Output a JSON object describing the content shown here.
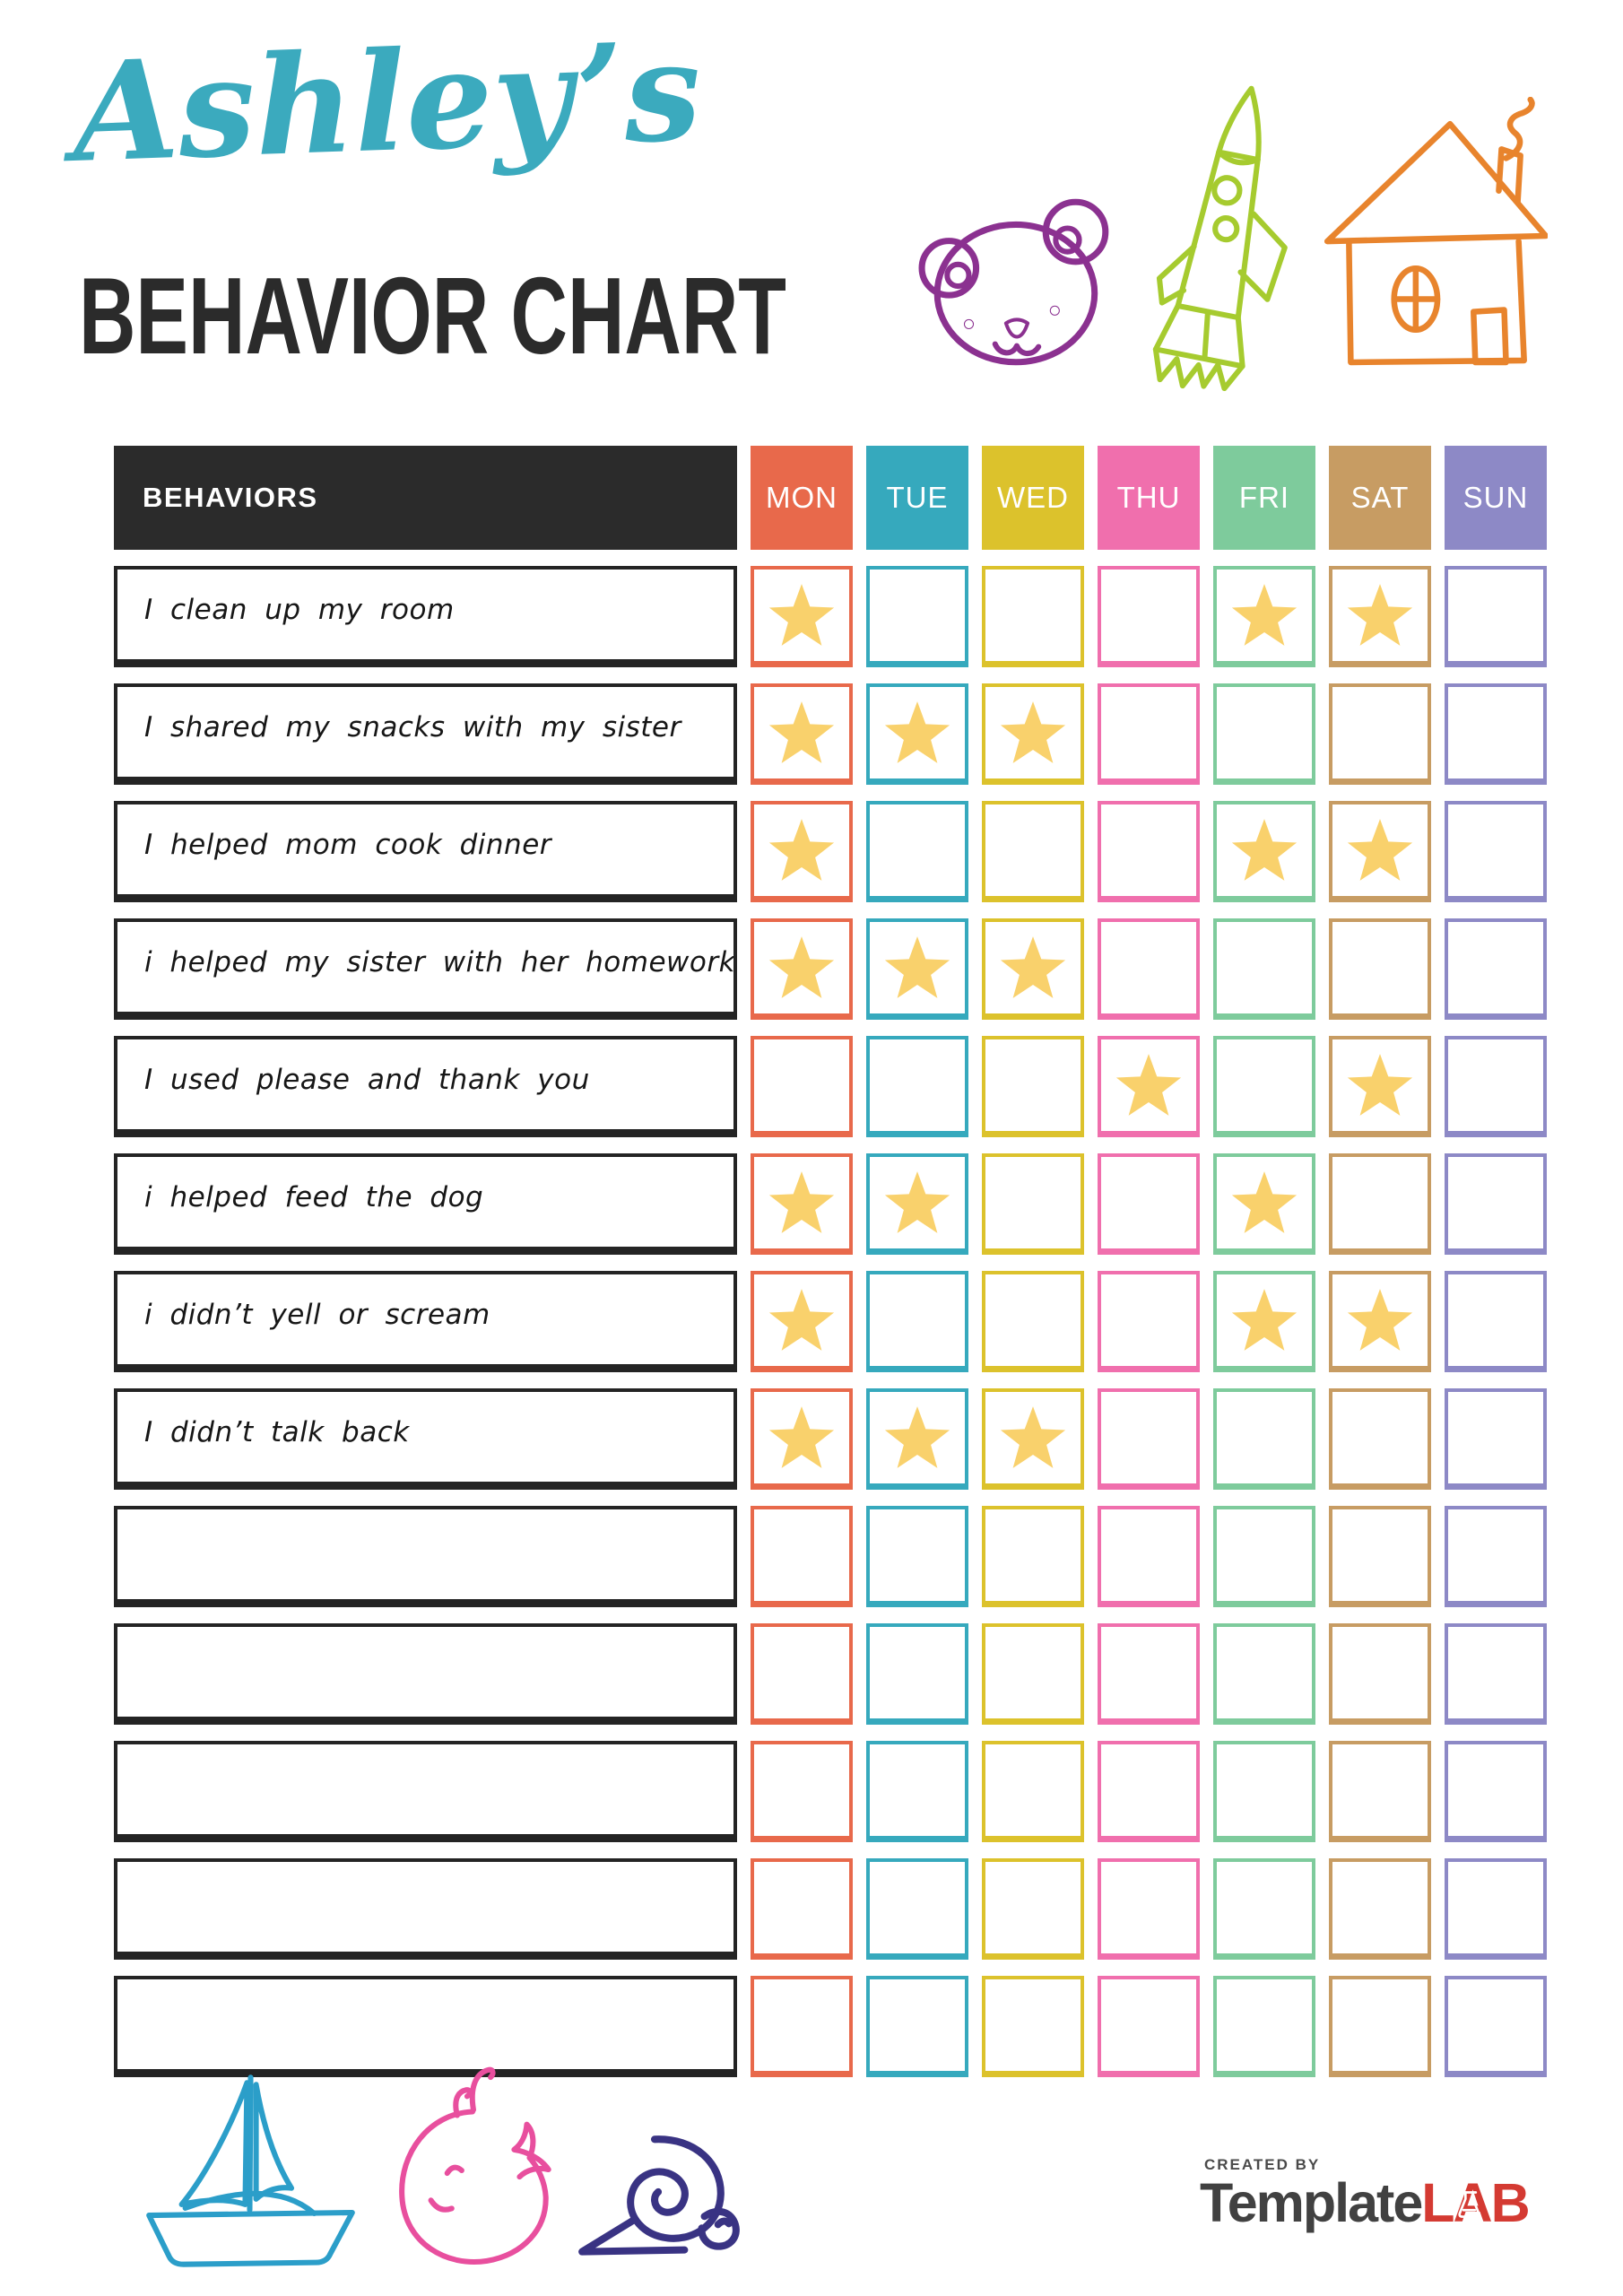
{
  "title": {
    "script": "Ashley’s",
    "main": "BEHAVIOR CHART"
  },
  "table": {
    "behaviors_header": "BEHAVIORS",
    "days": [
      {
        "label": "MON",
        "color": "#E8694B"
      },
      {
        "label": "TUE",
        "color": "#36A9BD"
      },
      {
        "label": "WED",
        "color": "#DCC22C"
      },
      {
        "label": "THU",
        "color": "#F06FAD"
      },
      {
        "label": "FRI",
        "color": "#7ECB9C"
      },
      {
        "label": "SAT",
        "color": "#C79C63"
      },
      {
        "label": "SUN",
        "color": "#8D89C6"
      }
    ],
    "rows": [
      {
        "behavior": "I clean up my room",
        "stars": [
          "MON",
          "FRI",
          "SAT"
        ]
      },
      {
        "behavior": "I shared my snacks with my sister",
        "stars": [
          "MON",
          "TUE",
          "WED"
        ]
      },
      {
        "behavior": "I helped mom cook dinner",
        "stars": [
          "MON",
          "FRI",
          "SAT"
        ]
      },
      {
        "behavior": "i helped my sister with her homework",
        "stars": [
          "MON",
          "TUE",
          "WED"
        ]
      },
      {
        "behavior": "I used please and thank you",
        "stars": [
          "THU",
          "SAT"
        ]
      },
      {
        "behavior": "i helped feed the dog",
        "stars": [
          "MON",
          "TUE",
          "FRI"
        ]
      },
      {
        "behavior": "i didn’t yell or scream",
        "stars": [
          "MON",
          "FRI",
          "SAT"
        ]
      },
      {
        "behavior": "I didn’t talk back",
        "stars": [
          "MON",
          "TUE",
          "WED"
        ]
      },
      {
        "behavior": "",
        "stars": []
      },
      {
        "behavior": "",
        "stars": []
      },
      {
        "behavior": "",
        "stars": []
      },
      {
        "behavior": "",
        "stars": []
      },
      {
        "behavior": "",
        "stars": []
      }
    ]
  },
  "footer": {
    "created_by": "CREATED BY",
    "brand_part1": "Template",
    "brand_part2": "LAB"
  },
  "decorations": {
    "top": [
      "teddy-bear-icon",
      "rocket-icon",
      "house-icon"
    ],
    "bottom": [
      "sailboat-icon",
      "whale-icon",
      "snail-icon"
    ]
  },
  "colors": {
    "title_script": "#3BAABE",
    "title_main": "#2B2B2B",
    "header_bg": "#2B2B2B",
    "header_text": "#FFFFFF",
    "star": "#F9D16C",
    "row_border": "#242424",
    "doodle_bear": "#8B3190",
    "doodle_rocket": "#A6CB2F",
    "doodle_house": "#E8842D",
    "doodle_sailboat": "#2B9EC9",
    "doodle_whale": "#E84F9E",
    "doodle_snail": "#393383",
    "logo_red": "#D43A32",
    "logo_dark": "#414141",
    "logo_gray": "#4A4A4A"
  }
}
